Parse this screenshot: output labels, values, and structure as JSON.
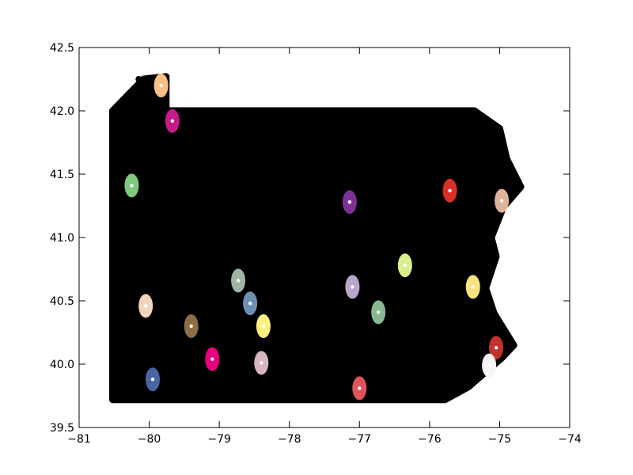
{
  "chart_data": {
    "type": "scatter",
    "title": "",
    "xlabel": "",
    "ylabel": "",
    "xlim": [
      -81,
      -74
    ],
    "ylim": [
      39.5,
      42.5
    ],
    "grid": false,
    "legend": "none",
    "x_ticks": [
      -81,
      -80,
      -79,
      -78,
      -77,
      -76,
      -75,
      -74
    ],
    "y_ticks": [
      39.5,
      40.0,
      40.5,
      41.0,
      41.5,
      42.0,
      42.5
    ],
    "x_tick_labels": [
      "−81",
      "−80",
      "−79",
      "−78",
      "−77",
      "−76",
      "−75",
      "−74"
    ],
    "y_tick_labels": [
      "39.5",
      "40.0",
      "40.5",
      "41.0",
      "41.5",
      "42.0",
      "42.5"
    ],
    "background_points": {
      "color": "#000000",
      "outline": [
        [
          -80.52,
          39.72
        ],
        [
          -80.52,
          42.0
        ],
        [
          -80.08,
          42.25
        ],
        [
          -79.76,
          42.27
        ],
        [
          -79.76,
          42.0
        ],
        [
          -75.36,
          42.0
        ],
        [
          -75.0,
          41.86
        ],
        [
          -74.9,
          41.62
        ],
        [
          -74.7,
          41.4
        ],
        [
          -74.95,
          41.24
        ],
        [
          -75.12,
          41.0
        ],
        [
          -75.05,
          40.85
        ],
        [
          -75.2,
          40.6
        ],
        [
          -75.08,
          40.4
        ],
        [
          -74.8,
          40.15
        ],
        [
          -74.97,
          40.05
        ],
        [
          -75.45,
          39.82
        ],
        [
          -75.78,
          39.72
        ]
      ],
      "stray_points": [
        [
          -80.15,
          42.25
        ]
      ]
    },
    "clusters": [
      {
        "color": "#fdc086",
        "x": -79.83,
        "y": 42.2
      },
      {
        "color": "#c51b8a",
        "x": -79.67,
        "y": 41.92
      },
      {
        "color": "#7fc97f",
        "x": -80.25,
        "y": 41.41
      },
      {
        "color": "#7b3294",
        "x": -77.14,
        "y": 41.28
      },
      {
        "color": "#d73027",
        "x": -75.71,
        "y": 41.37
      },
      {
        "color": "#dfb39a",
        "x": -74.97,
        "y": 41.29
      },
      {
        "color": "#d9ef8b",
        "x": -76.35,
        "y": 40.78
      },
      {
        "color": "#b5a8cc",
        "x": -77.1,
        "y": 40.61
      },
      {
        "color": "#f7e27f",
        "x": -75.38,
        "y": 40.61
      },
      {
        "color": "#9fb4a4",
        "x": -78.73,
        "y": 40.66
      },
      {
        "color": "#6e8fb2",
        "x": -78.56,
        "y": 40.48
      },
      {
        "color": "#86b98f",
        "x": -76.73,
        "y": 40.41
      },
      {
        "color": "#fff17f",
        "x": -78.37,
        "y": 40.3
      },
      {
        "color": "#f2d5bb",
        "x": -80.05,
        "y": 40.46
      },
      {
        "color": "#8c6d46",
        "x": -79.4,
        "y": 40.3
      },
      {
        "color": "#d7b5c2",
        "x": -78.4,
        "y": 40.01
      },
      {
        "color": "#e7007f",
        "x": -79.1,
        "y": 40.04
      },
      {
        "color": "#4965a5",
        "x": -79.95,
        "y": 39.88
      },
      {
        "color": "#c1322b",
        "x": -75.05,
        "y": 40.13
      },
      {
        "color": "#f5f5f5",
        "x": -75.15,
        "y": 39.99
      },
      {
        "color": "#e0535a",
        "x": -77.0,
        "y": 39.81
      }
    ]
  }
}
